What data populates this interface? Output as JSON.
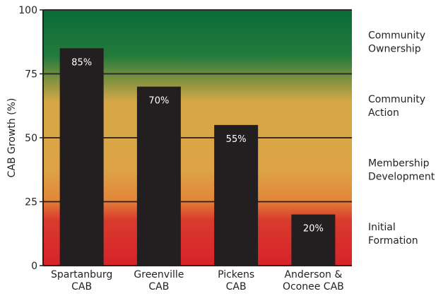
{
  "chart_data": {
    "type": "bar",
    "ylabel": "CAB Growth (%)",
    "ylim": [
      0,
      100
    ],
    "yticks": [
      0,
      25,
      50,
      75,
      100
    ],
    "categories": [
      "Spartanburg CAB",
      "Greenville CAB",
      "Pickens CAB",
      "Anderson & Oconee CAB"
    ],
    "category_lines": [
      [
        "Spartanburg",
        "CAB"
      ],
      [
        "Greenville",
        "CAB"
      ],
      [
        "Pickens",
        "CAB"
      ],
      [
        "Anderson &",
        "Oconee CAB"
      ]
    ],
    "values": [
      85,
      70,
      55,
      20
    ],
    "data_labels": [
      "85%",
      "70%",
      "55%",
      "20%"
    ],
    "bar_color": "#231f20",
    "background_gradient": [
      "#0b6b3a",
      "#1e7a3a",
      "#d9a645",
      "#dca548",
      "#e08a3a",
      "#d8232a"
    ],
    "stages": [
      {
        "lines": [
          "Community",
          "Ownership"
        ],
        "range": [
          75,
          100
        ]
      },
      {
        "lines": [
          "Community",
          "Action"
        ],
        "range": [
          50,
          75
        ]
      },
      {
        "lines": [
          "Membership",
          "Development"
        ],
        "range": [
          25,
          50
        ]
      },
      {
        "lines": [
          "Initial",
          "Formation"
        ],
        "range": [
          0,
          25
        ]
      }
    ]
  }
}
